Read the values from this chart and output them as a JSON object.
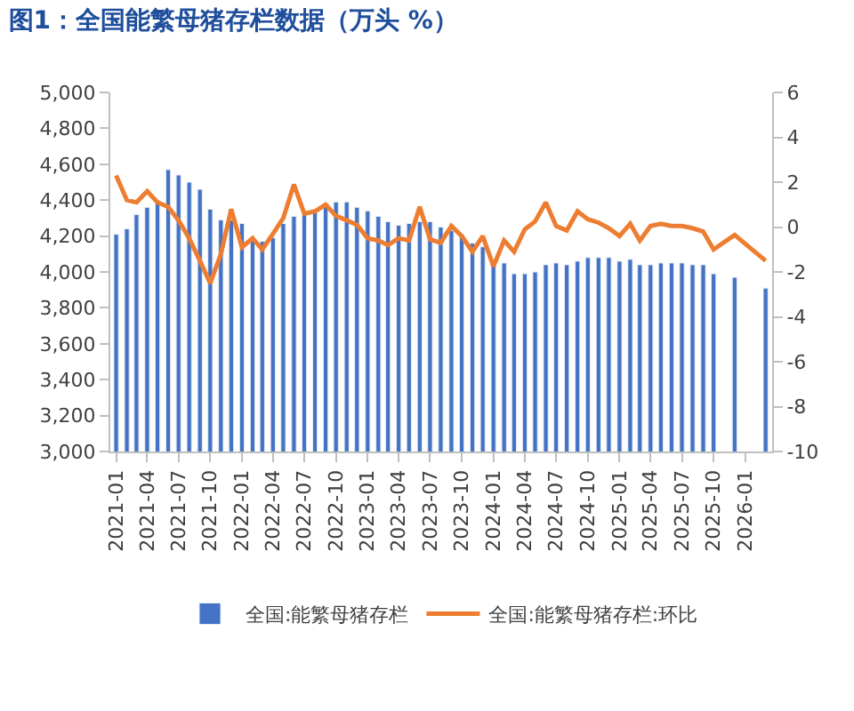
{
  "chart_data": {
    "type": "bar",
    "title": "图1：全国能繁母猪存栏数据（万头 %）",
    "x": [
      "2021-01",
      "2021-02",
      "2021-03",
      "2021-04",
      "2021-05",
      "2021-06",
      "2021-07",
      "2021-08",
      "2021-09",
      "2021-10",
      "2021-11",
      "2021-12",
      "2022-01",
      "2022-02",
      "2022-03",
      "2022-04",
      "2022-05",
      "2022-06",
      "2022-07",
      "2022-08",
      "2022-09",
      "2022-10",
      "2022-11",
      "2022-12",
      "2023-01",
      "2023-02",
      "2023-03",
      "2023-04",
      "2023-05",
      "2023-06",
      "2023-07",
      "2023-08",
      "2023-09",
      "2023-10",
      "2023-11",
      "2023-12",
      "2024-01",
      "2024-02",
      "2024-03",
      "2024-04",
      "2024-05",
      "2024-06",
      "2024-07",
      "2024-08",
      "2024-09",
      "2024-10",
      "2024-11",
      "2024-12",
      "2025-01",
      "2025-02",
      "2025-03",
      "2025-04",
      "2025-05",
      "2025-06",
      "2025-07",
      "2025-08",
      "2025-09",
      "2025-10",
      "2025-12",
      "2026-03"
    ],
    "series": [
      {
        "name": "全国:能繁母猪存栏",
        "color": "#4472c4",
        "values": [
          4210,
          4240,
          4320,
          4360,
          4400,
          4570,
          4540,
          4500,
          4460,
          4350,
          4290,
          4290,
          4270,
          4180,
          4170,
          4190,
          4270,
          4310,
          4320,
          4340,
          4380,
          4390,
          4390,
          4360,
          4340,
          4310,
          4280,
          4260,
          4270,
          4280,
          4280,
          4250,
          4230,
          4210,
          4160,
          4140,
          4050,
          4050,
          3990,
          3990,
          4000,
          4040,
          4050,
          4040,
          4060,
          4080,
          4080,
          4080,
          4060,
          4070,
          4040,
          4040,
          4050,
          4050,
          4050,
          4040,
          4040,
          3990,
          3970,
          3910
        ]
      },
      {
        "name": "全国:能繁母猪存栏:环比",
        "type": "line",
        "axis": "y2",
        "color": "#ed7d31",
        "values": [
          2.3,
          1.2,
          1.1,
          1.6,
          1.1,
          0.9,
          0.3,
          -0.5,
          -1.5,
          -2.5,
          -1.2,
          0.8,
          -0.9,
          -0.5,
          -1.0,
          -0.3,
          0.4,
          1.9,
          0.6,
          0.7,
          1.0,
          0.5,
          0.3,
          0.1,
          -0.5,
          -0.6,
          -0.8,
          -0.5,
          -0.6,
          0.9,
          -0.55,
          -0.7,
          0.05,
          -0.4,
          -1.1,
          -0.4,
          -1.75,
          -0.6,
          -1.1,
          -0.1,
          0.25,
          1.1,
          0.05,
          -0.15,
          0.7,
          0.35,
          0.2,
          -0.05,
          -0.4,
          0.15,
          -0.6,
          0.05,
          0.15,
          0.05,
          0.05,
          -0.05,
          -0.2,
          -1.0,
          -0.35,
          -1.5
        ]
      }
    ],
    "xlim": [
      "2020-12-15",
      "2026-03-20"
    ],
    "xticks": [
      "2021-01",
      "2021-04",
      "2021-07",
      "2021-10",
      "2022-01",
      "2022-04",
      "2022-07",
      "2022-10",
      "2023-01",
      "2023-04",
      "2023-07",
      "2023-10",
      "2024-01",
      "2024-04",
      "2024-07",
      "2024-10",
      "2025-01",
      "2025-04",
      "2025-07",
      "2025-10",
      "2026-01"
    ],
    "ylim": [
      3000,
      5000
    ],
    "yticks": [
      {
        "value": 3000,
        "label": "3,000"
      },
      {
        "value": 3200,
        "label": "3,200"
      },
      {
        "value": 3400,
        "label": "3,400"
      },
      {
        "value": 3600,
        "label": "3,600"
      },
      {
        "value": 3800,
        "label": "3,800"
      },
      {
        "value": 4000,
        "label": "4,000"
      },
      {
        "value": 4200,
        "label": "4,200"
      },
      {
        "value": 4400,
        "label": "4,400"
      },
      {
        "value": 4600,
        "label": "4,600"
      },
      {
        "value": 4800,
        "label": "4,800"
      },
      {
        "value": 5000,
        "label": "5,000"
      }
    ],
    "y2lim": [
      -10,
      6
    ],
    "y2ticks": [
      -10,
      -8,
      -6,
      -4,
      -2,
      0,
      2,
      4,
      6
    ],
    "legend": "bottom",
    "line_style": "solid",
    "marker": "none"
  }
}
